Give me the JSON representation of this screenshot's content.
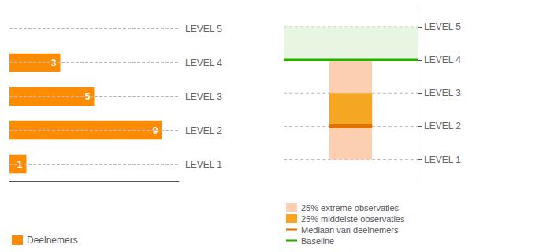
{
  "chart_data": [
    {
      "type": "bar",
      "orientation": "horizontal",
      "categories": [
        "LEVEL 1",
        "LEVEL 2",
        "LEVEL 3",
        "LEVEL 4",
        "LEVEL 5"
      ],
      "series": [
        {
          "name": "Deelnemers",
          "color": "#FF8C00",
          "values": [
            1,
            9,
            5,
            3,
            null
          ]
        }
      ],
      "xlim": [
        0,
        10
      ],
      "grid": true,
      "data_labels": true,
      "tick_labels": "y",
      "legend": "lower left"
    },
    {
      "type": "box",
      "ylim": [
        0.35,
        5.45
      ],
      "yticks": [
        {
          "value": 1,
          "label": "LEVEL 1"
        },
        {
          "value": 2,
          "label": "LEVEL 2"
        },
        {
          "value": 3,
          "label": "LEVEL 3"
        },
        {
          "value": 4,
          "label": "LEVEL 4"
        },
        {
          "value": 5,
          "label": "LEVEL 5"
        }
      ],
      "grid": true,
      "tick_labels": "y",
      "legend": "lower left",
      "series": [
        {
          "type": "band",
          "color": "#E8F5E0",
          "values": [
            4.0,
            5.0
          ]
        },
        {
          "name": "25% extreme observaties",
          "type": "range",
          "color": "#FBCFB0",
          "values": [
            1.0,
            4.0
          ]
        },
        {
          "name": "25% middelste observaties",
          "type": "range",
          "color": "#F5A623",
          "values": [
            2.0,
            3.0
          ]
        },
        {
          "name": "Mediaan van deelnemers",
          "type": "median",
          "color": "#E07000",
          "values": [
            2.0
          ]
        },
        {
          "name": "Baseline",
          "type": "hline",
          "color": "#2EAA00",
          "values": [
            4.0
          ]
        }
      ]
    }
  ]
}
